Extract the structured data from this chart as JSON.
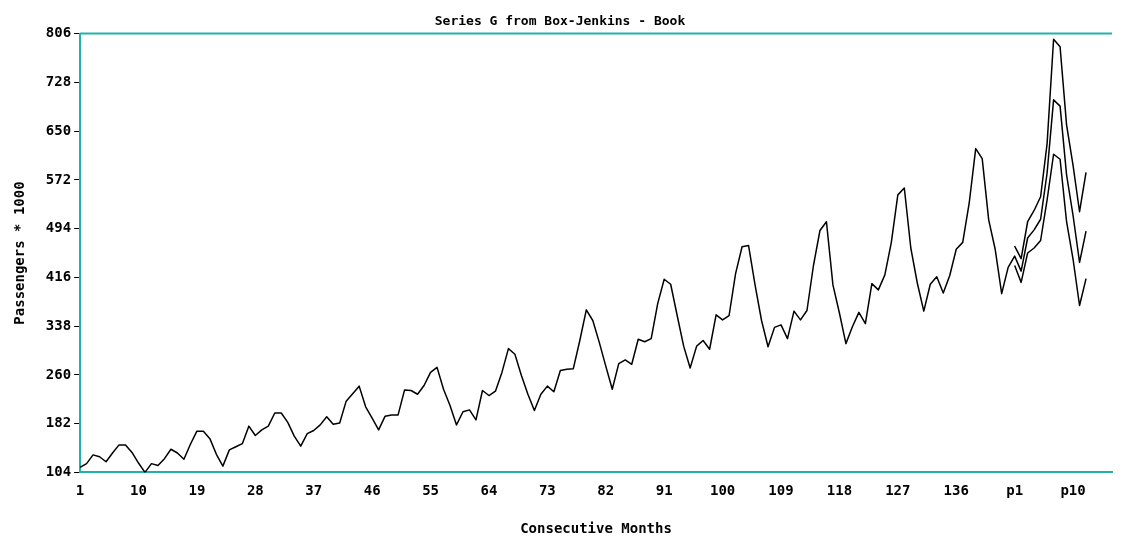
{
  "chart_data": {
    "type": "line",
    "title": "Series G from Box-Jenkins - Book",
    "xlabel": "Consecutive Months",
    "ylabel": "Passengers * 1000",
    "x": [
      1,
      2,
      3,
      4,
      5,
      6,
      7,
      8,
      9,
      10,
      11,
      12,
      13,
      14,
      15,
      16,
      17,
      18,
      19,
      20,
      21,
      22,
      23,
      24,
      25,
      26,
      27,
      28,
      29,
      30,
      31,
      32,
      33,
      34,
      35,
      36,
      37,
      38,
      39,
      40,
      41,
      42,
      43,
      44,
      45,
      46,
      47,
      48,
      49,
      50,
      51,
      52,
      53,
      54,
      55,
      56,
      57,
      58,
      59,
      60,
      61,
      62,
      63,
      64,
      65,
      66,
      67,
      68,
      69,
      70,
      71,
      72,
      73,
      74,
      75,
      76,
      77,
      78,
      79,
      80,
      81,
      82,
      83,
      84,
      85,
      86,
      87,
      88,
      89,
      90,
      91,
      92,
      93,
      94,
      95,
      96,
      97,
      98,
      99,
      100,
      101,
      102,
      103,
      104,
      105,
      106,
      107,
      108,
      109,
      110,
      111,
      112,
      113,
      114,
      115,
      116,
      117,
      118,
      119,
      120,
      121,
      122,
      123,
      124,
      125,
      126,
      127,
      128,
      129,
      130,
      131,
      132,
      133,
      134,
      135,
      136,
      137,
      138,
      139,
      140,
      141,
      142,
      143,
      144,
      145,
      146,
      147,
      148,
      149,
      150,
      151,
      152,
      153,
      154,
      155,
      156
    ],
    "series": [
      {
        "color": "#000000",
        "values": [
          112,
          118,
          132,
          129,
          121,
          135,
          148,
          148,
          136,
          119,
          104,
          118,
          115,
          126,
          141,
          135,
          125,
          149,
          170,
          170,
          158,
          133,
          114,
          140,
          145,
          150,
          178,
          163,
          172,
          178,
          199,
          199,
          184,
          162,
          146,
          166,
          171,
          180,
          193,
          181,
          183,
          218,
          230,
          242,
          209,
          191,
          172,
          194,
          196,
          196,
          236,
          235,
          229,
          243,
          264,
          272,
          237,
          211,
          180,
          201,
          204,
          188,
          235,
          227,
          234,
          264,
          302,
          293,
          259,
          229,
          203,
          229,
          242,
          233,
          267,
          269,
          270,
          315,
          364,
          347,
          312,
          274,
          237,
          278,
          284,
          277,
          317,
          313,
          318,
          374,
          413,
          405,
          355,
          306,
          271,
          306,
          315,
          301,
          356,
          348,
          355,
          422,
          465,
          467,
          404,
          347,
          305,
          336,
          340,
          318,
          362,
          348,
          363,
          435,
          491,
          505,
          404,
          359,
          310,
          337,
          360,
          342,
          406,
          396,
          420,
          472,
          548,
          559,
          463,
          407,
          362,
          405,
          417,
          391,
          419,
          461,
          472,
          535,
          622,
          606,
          508,
          461,
          390,
          432,
          450,
          426,
          479,
          492,
          509,
          583,
          700,
          690,
          580,
          515,
          440,
          490
        ]
      },
      {
        "color": "#000000",
        "x": [
          145,
          146,
          147,
          148,
          149,
          150,
          151,
          152,
          153,
          154,
          155,
          156
        ],
        "values": [
          466,
          446,
          505,
          523,
          545,
          630,
          797,
          785,
          660,
          595,
          521,
          584
        ]
      },
      {
        "color": "#000000",
        "x": [
          145,
          146,
          147,
          148,
          149,
          150,
          151,
          152,
          153,
          154,
          155,
          156
        ],
        "values": [
          435,
          408,
          455,
          463,
          475,
          540,
          613,
          605,
          505,
          445,
          371,
          414
        ]
      }
    ],
    "xlim": [
      1,
      160
    ],
    "xticks": [
      1,
      10,
      19,
      28,
      37,
      46,
      55,
      64,
      73,
      82,
      91,
      100,
      109,
      118,
      127,
      136,
      {
        "value": 145,
        "label": "p1"
      },
      {
        "value": 154,
        "label": "p10"
      }
    ],
    "ylim": [
      104,
      806
    ],
    "yticks": [
      104,
      182,
      260,
      338,
      416,
      494,
      572,
      650,
      728,
      806
    ],
    "grid": false,
    "legend": false,
    "marker": "none",
    "line_style": "solid"
  }
}
